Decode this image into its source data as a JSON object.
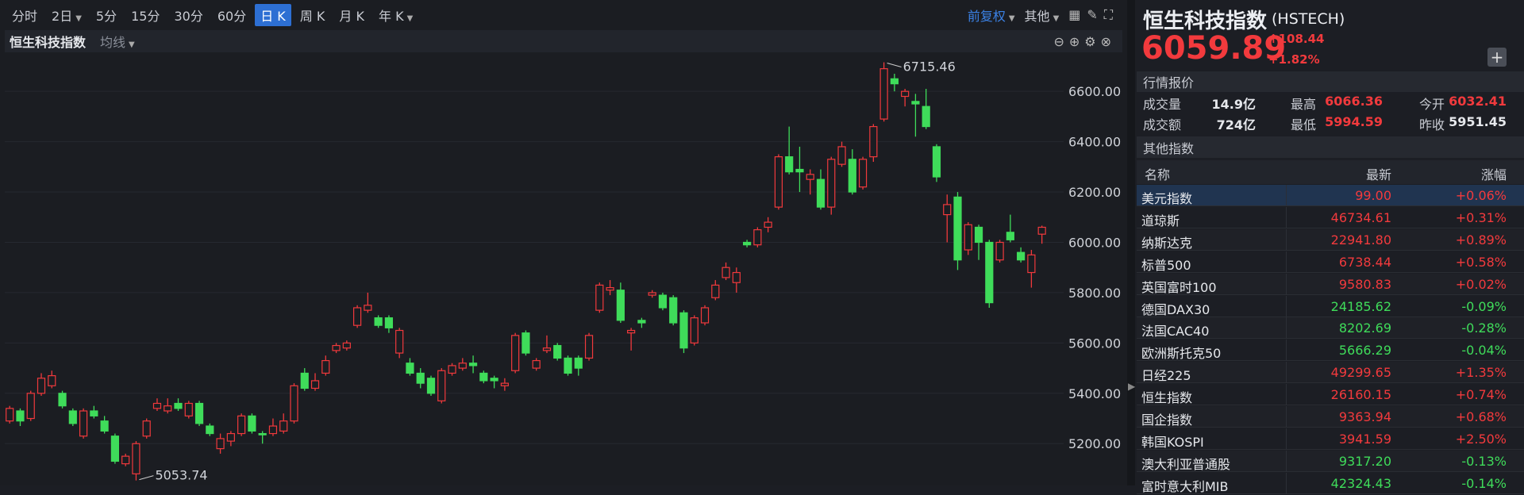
{
  "toolbar": {
    "periods": [
      {
        "label": "分时",
        "dropdown": false,
        "active": false
      },
      {
        "label": "2日",
        "dropdown": true,
        "active": false
      },
      {
        "label": "5分",
        "dropdown": false,
        "active": false
      },
      {
        "label": "15分",
        "dropdown": false,
        "active": false
      },
      {
        "label": "30分",
        "dropdown": false,
        "active": false
      },
      {
        "label": "60分",
        "dropdown": false,
        "active": false
      },
      {
        "label": "日 K",
        "dropdown": false,
        "active": true
      },
      {
        "label": "周 K",
        "dropdown": false,
        "active": false
      },
      {
        "label": "月 K",
        "dropdown": false,
        "active": false
      },
      {
        "label": "年 K",
        "dropdown": true,
        "active": false
      }
    ],
    "right": [
      "前复权",
      "其他"
    ]
  },
  "chart_header": {
    "name": "恒生科技指数",
    "indicator": "均线"
  },
  "chart_data": {
    "type": "candlestick",
    "up_color": "#f0393c",
    "down_color": "#3fdc5a",
    "grid": true,
    "open": [
      5290,
      5330,
      5300,
      5400,
      5430,
      5400,
      5330,
      5230,
      5330,
      5290,
      5230,
      5120,
      5080,
      5230,
      5340,
      5330,
      5360,
      5310,
      5360,
      5270,
      5180,
      5210,
      5240,
      5310,
      5240,
      5240,
      5250,
      5290,
      5480,
      5420,
      5480,
      5570,
      5580,
      5670,
      5730,
      5700,
      5700,
      5560,
      5520,
      5480,
      5460,
      5370,
      5480,
      5500,
      5520,
      5480,
      5460,
      5430,
      5490,
      5640,
      5500,
      5570,
      5590,
      5540,
      5540,
      5540,
      5730,
      5810,
      5810,
      5640,
      5690,
      5790,
      5790,
      5780,
      5720,
      5600,
      5680,
      5780,
      5860,
      5840,
      6000,
      5990,
      6060,
      6140,
      6340,
      6290,
      6250,
      6250,
      6140,
      6310,
      6330,
      6220,
      6340,
      6490,
      6650,
      6580,
      6560,
      6540,
      6380,
      6110,
      6180,
      5970,
      6060,
      6000,
      5930,
      6040,
      5960,
      5880,
      6032.41
    ],
    "high": [
      5350,
      5340,
      5410,
      5480,
      5490,
      5410,
      5340,
      5340,
      5350,
      5310,
      5240,
      5160,
      5210,
      5300,
      5380,
      5380,
      5380,
      5370,
      5370,
      5280,
      5240,
      5250,
      5320,
      5320,
      5250,
      5300,
      5320,
      5440,
      5500,
      5480,
      5550,
      5600,
      5610,
      5750,
      5800,
      5710,
      5710,
      5660,
      5540,
      5500,
      5470,
      5500,
      5520,
      5540,
      5550,
      5490,
      5470,
      5460,
      5640,
      5650,
      5540,
      5630,
      5600,
      5550,
      5550,
      5640,
      5840,
      5850,
      5840,
      5660,
      5700,
      5810,
      5800,
      5790,
      5730,
      5710,
      5750,
      5850,
      5920,
      5900,
      6010,
      6060,
      6100,
      6350,
      6460,
      6380,
      6290,
      6290,
      6340,
      6400,
      6370,
      6340,
      6470,
      6715.46,
      6670,
      6610,
      6590,
      6610,
      6390,
      6190,
      6200,
      6080,
      6070,
      6010,
      6010,
      6110,
      5980,
      5970,
      6066.36
    ],
    "low": [
      5280,
      5270,
      5290,
      5390,
      5420,
      5340,
      5270,
      5220,
      5300,
      5240,
      5120,
      5110,
      5053.74,
      5220,
      5330,
      5320,
      5330,
      5300,
      5270,
      5230,
      5160,
      5190,
      5230,
      5240,
      5200,
      5230,
      5240,
      5280,
      5410,
      5410,
      5470,
      5560,
      5570,
      5660,
      5720,
      5660,
      5640,
      5540,
      5470,
      5420,
      5390,
      5360,
      5470,
      5490,
      5480,
      5440,
      5420,
      5410,
      5480,
      5550,
      5490,
      5560,
      5530,
      5470,
      5470,
      5530,
      5720,
      5790,
      5680,
      5570,
      5660,
      5780,
      5730,
      5670,
      5560,
      5590,
      5670,
      5770,
      5850,
      5800,
      5980,
      5980,
      6040,
      6130,
      6270,
      6200,
      6190,
      6130,
      6110,
      6300,
      6190,
      6210,
      6320,
      6480,
      6600,
      6540,
      6420,
      6450,
      6240,
      6000,
      5890,
      5950,
      5930,
      5740,
      5920,
      6000,
      5920,
      5820,
      5994.59
    ],
    "close": [
      5340,
      5290,
      5400,
      5460,
      5470,
      5350,
      5280,
      5330,
      5310,
      5250,
      5130,
      5150,
      5200,
      5290,
      5360,
      5350,
      5340,
      5360,
      5280,
      5240,
      5220,
      5240,
      5310,
      5250,
      5235,
      5270,
      5290,
      5430,
      5420,
      5450,
      5530,
      5590,
      5600,
      5740,
      5750,
      5670,
      5660,
      5650,
      5480,
      5440,
      5400,
      5490,
      5510,
      5520,
      5510,
      5450,
      5450,
      5440,
      5630,
      5560,
      5530,
      5580,
      5540,
      5480,
      5500,
      5630,
      5830,
      5820,
      5690,
      5650,
      5680,
      5800,
      5740,
      5680,
      5580,
      5700,
      5740,
      5830,
      5900,
      5880,
      5990,
      6050,
      6080,
      6340,
      6280,
      6280,
      6270,
      6140,
      6330,
      6380,
      6200,
      6330,
      6460,
      6690,
      6630,
      6600,
      6550,
      6460,
      6260,
      6150,
      5930,
      6070,
      6000,
      5760,
      6000,
      6010,
      5930,
      5950,
      6059.89
    ],
    "ylim": [
      5040,
      6755
    ],
    "yticks": [
      {
        "value": 5200,
        "label": "5200.00"
      },
      {
        "value": 5400,
        "label": "5400.00"
      },
      {
        "value": 5600,
        "label": "5600.00"
      },
      {
        "value": 5800,
        "label": "5800.00"
      },
      {
        "value": 6000,
        "label": "6000.00"
      },
      {
        "value": 6200,
        "label": "6200.00"
      },
      {
        "value": 6400,
        "label": "6400.00"
      },
      {
        "value": 6600,
        "label": "6600.00"
      }
    ]
  },
  "quote": {
    "name": "恒生科技指数",
    "code": "(HSTECH)",
    "price": "6059.89",
    "change": "108.44",
    "change_pct": "+1.82%"
  },
  "market": {
    "title": "行情报价",
    "rows": [
      [
        [
          "成交量",
          "14.9亿"
        ],
        [
          "最高",
          "6066.36"
        ],
        [
          "今开",
          "6032.41"
        ]
      ],
      [
        [
          "成交额",
          "724亿"
        ],
        [
          "最低",
          "5994.59"
        ],
        [
          "昨收",
          "5951.45"
        ]
      ]
    ]
  },
  "other_indices": {
    "title": "其他指数",
    "columns": [
      "名称",
      "最新",
      "涨幅"
    ],
    "rows": [
      [
        "美元指数",
        "99.00",
        "+0.06%"
      ],
      [
        "道琼斯",
        "46734.61",
        "+0.31%"
      ],
      [
        "纳斯达克",
        "22941.80",
        "+0.89%"
      ],
      [
        "标普500",
        "6738.44",
        "+0.58%"
      ],
      [
        "英国富时100",
        "9580.83",
        "+0.02%"
      ],
      [
        "德国DAX30",
        "24185.62",
        "-0.09%"
      ],
      [
        "法国CAC40",
        "8202.69",
        "-0.28%"
      ],
      [
        "欧洲斯托克50",
        "5666.29",
        "-0.04%"
      ],
      [
        "日经225",
        "49299.65",
        "+1.35%"
      ],
      [
        "恒生指数",
        "26160.15",
        "+0.74%"
      ],
      [
        "国企指数",
        "9363.94",
        "+0.68%"
      ],
      [
        "韩国KOSPI",
        "3941.59",
        "+2.50%"
      ],
      [
        "澳大利亚普通股",
        "9317.20",
        "-0.13%"
      ],
      [
        "富时意大利MIB",
        "42324.43",
        "-0.14%"
      ]
    ]
  }
}
